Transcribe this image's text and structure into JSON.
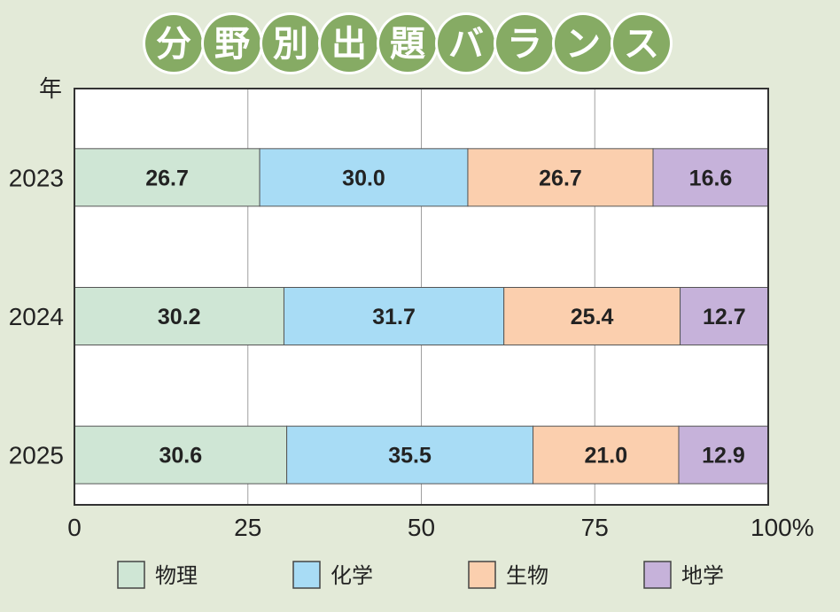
{
  "chart_data": {
    "type": "bar",
    "orientation": "horizontal",
    "stacked": true,
    "title": "分野別出題バランス",
    "ylabel": "年",
    "xlabel": "",
    "xunit": "%",
    "xlim": [
      0,
      100
    ],
    "xticks": [
      "0",
      "25",
      "50",
      "75",
      "100%"
    ],
    "grid": true,
    "legend_position": "bottom",
    "categories": [
      "2023",
      "2024",
      "2025"
    ],
    "series": [
      {
        "name": "物理",
        "color": "#cfe6d5",
        "values": [
          26.7,
          30.2,
          30.6
        ],
        "labels": [
          "26.7",
          "30.2",
          "30.6"
        ]
      },
      {
        "name": "化学",
        "color": "#a8dcf5",
        "values": [
          30.0,
          31.7,
          35.5
        ],
        "labels": [
          "30.0",
          "31.7",
          "35.5"
        ]
      },
      {
        "name": "生物",
        "color": "#fbcfae",
        "values": [
          26.7,
          25.4,
          21.0
        ],
        "labels": [
          "26.7",
          "25.4",
          "21.0"
        ]
      },
      {
        "name": "地学",
        "color": "#c6b2da",
        "values": [
          16.6,
          12.7,
          12.9
        ],
        "labels": [
          "16.6",
          "12.7",
          "12.9"
        ]
      }
    ]
  }
}
